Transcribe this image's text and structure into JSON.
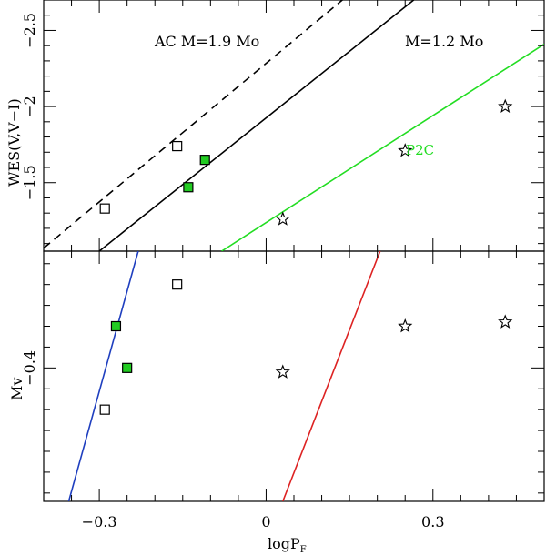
{
  "chart_data": [
    {
      "type": "scatter",
      "panel": "top",
      "ylabel": "WES(V,V−I)",
      "xlim": [
        -0.4,
        0.5
      ],
      "ylim": [
        -1.05,
        -2.7
      ],
      "y_inverted": true,
      "yticks": [
        -1.5,
        -2,
        -2.5
      ],
      "ytick_labels": [
        "−1.5",
        "−2",
        "−2.5"
      ],
      "annotations": {
        "ac_label": "AC M=1.9 Mo",
        "m12_label": "M=1.2 Mo",
        "p2c_label": "P2C"
      },
      "series": [
        {
          "name": "open squares",
          "marker": "square-open",
          "points": [
            [
              -0.29,
              -1.33
            ],
            [
              -0.16,
              -1.74
            ]
          ]
        },
        {
          "name": "filled squares",
          "marker": "square-filled",
          "color": "#22cc22",
          "points": [
            [
              -0.14,
              -1.47
            ],
            [
              -0.11,
              -1.65
            ]
          ]
        },
        {
          "name": "stars",
          "marker": "star-open",
          "points": [
            [
              0.03,
              -1.26
            ],
            [
              0.25,
              -1.71
            ],
            [
              0.43,
              -2.0
            ]
          ]
        }
      ],
      "lines": [
        {
          "name": "AC M=1.9 Mo",
          "style": "dashed",
          "color": "#000000",
          "points": [
            [
              -0.4,
              -1.07
            ],
            [
              0.18,
              -2.83
            ]
          ]
        },
        {
          "name": "M=1.2 Mo",
          "style": "solid",
          "color": "#000000",
          "points": [
            [
              -0.3,
              -1.05
            ],
            [
              0.31,
              -2.83
            ]
          ]
        },
        {
          "name": "P2C",
          "style": "solid",
          "color": "#22dd22",
          "points": [
            [
              -0.08,
              -1.05
            ],
            [
              0.5,
              -2.41
            ]
          ]
        }
      ]
    },
    {
      "type": "scatter",
      "panel": "bottom",
      "xlabel": "logP",
      "xlabel_sub": "F",
      "ylabel": "Mv",
      "xlim": [
        -0.4,
        0.5
      ],
      "ylim": [
        -0.08,
        -0.68
      ],
      "y_inverted": true,
      "yticks": [
        -0.4
      ],
      "ytick_labels": [
        "−0.4"
      ],
      "xticks": [
        -0.3,
        0,
        0.3
      ],
      "xtick_labels": [
        "−0.3",
        "0",
        "0.3"
      ],
      "series": [
        {
          "name": "open squares",
          "marker": "square-open",
          "points": [
            [
              -0.29,
              -0.3
            ],
            [
              -0.16,
              -0.6
            ]
          ]
        },
        {
          "name": "filled squares",
          "marker": "square-filled",
          "color": "#22cc22",
          "points": [
            [
              -0.25,
              -0.4
            ],
            [
              -0.27,
              -0.5
            ]
          ]
        },
        {
          "name": "stars",
          "marker": "star-open",
          "points": [
            [
              0.03,
              -0.39
            ],
            [
              0.25,
              -0.5
            ],
            [
              0.43,
              -0.51
            ]
          ]
        }
      ],
      "lines": [
        {
          "name": "blue edge",
          "style": "solid",
          "color": "#1f3fbf",
          "points": [
            [
              -0.355,
              -0.08
            ],
            [
              -0.23,
              -0.68
            ]
          ]
        },
        {
          "name": "red edge",
          "style": "solid",
          "color": "#dd2222",
          "points": [
            [
              0.03,
              -0.08
            ],
            [
              0.205,
              -0.68
            ]
          ]
        }
      ]
    }
  ]
}
